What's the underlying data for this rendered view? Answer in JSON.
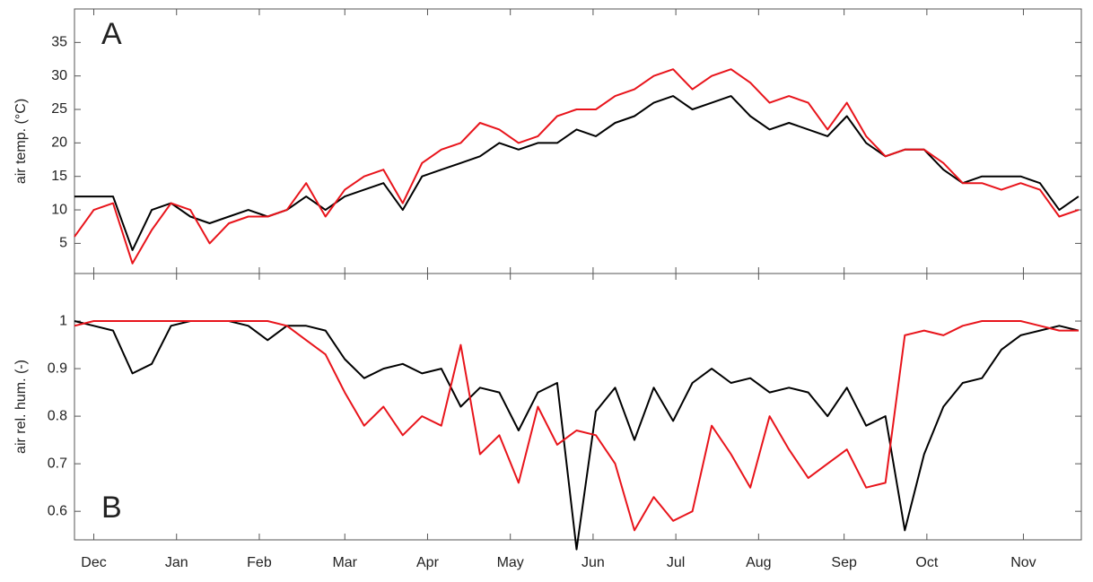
{
  "chart_data": [
    {
      "type": "line",
      "ylabel": "air temp. (°C)",
      "annotation": "A",
      "x": [
        0,
        7,
        14,
        21,
        28,
        35,
        42,
        49,
        56,
        63,
        70,
        77,
        84,
        91,
        98,
        105,
        112,
        119,
        126,
        133,
        140,
        147,
        154,
        161,
        168,
        175,
        182,
        189,
        196,
        203,
        210,
        217,
        224,
        231,
        238,
        245,
        252,
        259,
        266,
        273,
        280,
        287,
        294,
        301,
        308,
        315,
        322,
        329,
        336,
        343,
        350,
        357,
        364
      ],
      "xlim": [
        0,
        365
      ],
      "ylim": [
        0.5,
        40
      ],
      "yticks": [
        5,
        10,
        15,
        20,
        25,
        30,
        35
      ],
      "series": [
        {
          "color": "#000000",
          "values": [
            12,
            12,
            12,
            4,
            10,
            11,
            9,
            8,
            9,
            10,
            9,
            10,
            12,
            10,
            12,
            13,
            14,
            10,
            15,
            16,
            17,
            18,
            20,
            19,
            20,
            20,
            22,
            21,
            23,
            24,
            26,
            27,
            25,
            26,
            27,
            24,
            22,
            23,
            22,
            21,
            24,
            20,
            18,
            19,
            19,
            16,
            14,
            15,
            15,
            15,
            14,
            10,
            12
          ]
        },
        {
          "color": "#e8141b",
          "values": [
            6,
            10,
            11,
            2,
            7,
            11,
            10,
            5,
            8,
            9,
            9,
            10,
            14,
            9,
            13,
            15,
            16,
            11,
            17,
            19,
            20,
            23,
            22,
            20,
            21,
            24,
            25,
            25,
            27,
            28,
            30,
            31,
            28,
            30,
            31,
            29,
            26,
            27,
            26,
            22,
            26,
            21,
            18,
            19,
            19,
            17,
            14,
            14,
            13,
            14,
            13,
            9,
            10
          ]
        }
      ]
    },
    {
      "type": "line",
      "ylabel": "air rel. hum. (-)",
      "annotation": "B",
      "x": [
        0,
        7,
        14,
        21,
        28,
        35,
        42,
        49,
        56,
        63,
        70,
        77,
        84,
        91,
        98,
        105,
        112,
        119,
        126,
        133,
        140,
        147,
        154,
        161,
        168,
        175,
        182,
        189,
        196,
        203,
        210,
        217,
        224,
        231,
        238,
        245,
        252,
        259,
        266,
        273,
        280,
        287,
        294,
        301,
        308,
        315,
        322,
        329,
        336,
        343,
        350,
        357,
        364
      ],
      "xlim": [
        0,
        365
      ],
      "ylim": [
        0.54,
        1.1
      ],
      "yticks": [
        0.6,
        0.7,
        0.8,
        0.9,
        1
      ],
      "xticks": [
        {
          "value": 7,
          "label": "Dec"
        },
        {
          "value": 37,
          "label": "Jan"
        },
        {
          "value": 67,
          "label": "Feb"
        },
        {
          "value": 98,
          "label": "Mar"
        },
        {
          "value": 128,
          "label": "Apr"
        },
        {
          "value": 158,
          "label": "May"
        },
        {
          "value": 188,
          "label": "Jun"
        },
        {
          "value": 218,
          "label": "Jul"
        },
        {
          "value": 248,
          "label": "Aug"
        },
        {
          "value": 279,
          "label": "Sep"
        },
        {
          "value": 309,
          "label": "Oct"
        },
        {
          "value": 344,
          "label": "Nov"
        }
      ],
      "series": [
        {
          "color": "#000000",
          "values": [
            1.0,
            0.99,
            0.98,
            0.89,
            0.91,
            0.99,
            1.0,
            1.0,
            1.0,
            0.99,
            0.96,
            0.99,
            0.99,
            0.98,
            0.92,
            0.88,
            0.9,
            0.91,
            0.89,
            0.9,
            0.82,
            0.86,
            0.85,
            0.77,
            0.85,
            0.87,
            0.52,
            0.81,
            0.86,
            0.75,
            0.86,
            0.79,
            0.87,
            0.9,
            0.87,
            0.88,
            0.85,
            0.86,
            0.85,
            0.8,
            0.86,
            0.78,
            0.8,
            0.56,
            0.72,
            0.82,
            0.87,
            0.88,
            0.94,
            0.97,
            0.98,
            0.99,
            0.98
          ]
        },
        {
          "color": "#e8141b",
          "values": [
            0.99,
            1.0,
            1.0,
            1.0,
            1.0,
            1.0,
            1.0,
            1.0,
            1.0,
            1.0,
            1.0,
            0.99,
            0.96,
            0.93,
            0.85,
            0.78,
            0.82,
            0.76,
            0.8,
            0.78,
            0.95,
            0.72,
            0.76,
            0.66,
            0.82,
            0.74,
            0.77,
            0.76,
            0.7,
            0.56,
            0.63,
            0.58,
            0.6,
            0.78,
            0.72,
            0.65,
            0.8,
            0.73,
            0.67,
            0.7,
            0.73,
            0.65,
            0.66,
            0.97,
            0.98,
            0.97,
            0.99,
            1.0,
            1.0,
            1.0,
            0.99,
            0.98,
            0.98
          ]
        }
      ]
    }
  ]
}
